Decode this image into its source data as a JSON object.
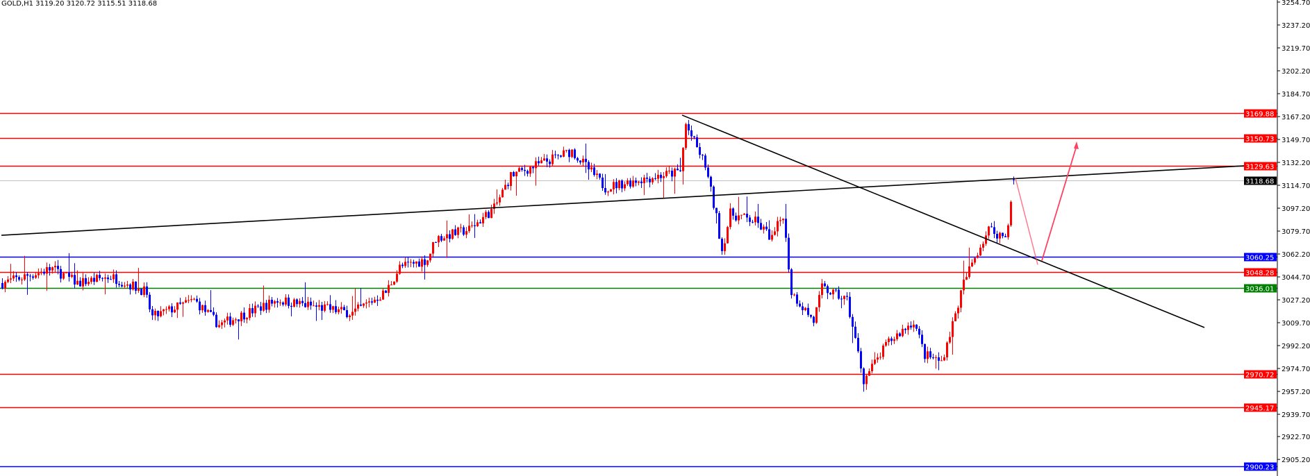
{
  "header": {
    "title": "GOLD,H1  3119.20 3120.72 3115.51 3118.68"
  },
  "chart_data": {
    "type": "candlestick",
    "symbol": "GOLD",
    "timeframe": "H1",
    "last_ohlc": {
      "open": 3119.2,
      "high": 3120.72,
      "low": 3115.51,
      "close": 3118.68
    },
    "ylim": [
      2897.0,
      3256.3
    ],
    "y_ticks": [
      "3254.70",
      "3237.20",
      "3219.70",
      "3202.20",
      "3184.70",
      "3167.20",
      "3149.70",
      "3132.20",
      "3114.70",
      "3097.20",
      "3079.70",
      "3062.20",
      "3044.70",
      "3027.20",
      "3009.70",
      "2992.20",
      "2974.70",
      "2957.20",
      "2939.70",
      "2922.70",
      "2905.20"
    ],
    "bull_color": "#ff0000",
    "bear_color": "#0000ff",
    "approx_close_path": [
      [
        0,
        3040
      ],
      [
        18,
        3051
      ],
      [
        27,
        3040
      ],
      [
        39,
        3045
      ],
      [
        51,
        3034
      ],
      [
        54,
        3014
      ],
      [
        69,
        3027
      ],
      [
        78,
        3008
      ],
      [
        99,
        3027
      ],
      [
        126,
        3017
      ],
      [
        138,
        3033
      ],
      [
        143,
        3052
      ],
      [
        153,
        3058
      ],
      [
        156,
        3074
      ],
      [
        168,
        3081
      ],
      [
        177,
        3097
      ],
      [
        183,
        3122
      ],
      [
        205,
        3141
      ],
      [
        217,
        3113
      ],
      [
        229,
        3119
      ],
      [
        244,
        3125
      ],
      [
        246,
        3161
      ],
      [
        253,
        3130
      ],
      [
        257,
        3090
      ],
      [
        259,
        3065
      ],
      [
        262,
        3093
      ],
      [
        271,
        3087
      ],
      [
        277,
        3074
      ],
      [
        281,
        3093
      ],
      [
        284,
        3033
      ],
      [
        292,
        3011
      ],
      [
        295,
        3036
      ],
      [
        304,
        3027
      ],
      [
        310,
        2966
      ],
      [
        319,
        2995
      ],
      [
        328,
        3011
      ],
      [
        332,
        2985
      ],
      [
        338,
        2980
      ],
      [
        343,
        3016
      ],
      [
        346,
        3040
      ],
      [
        350,
        3060
      ],
      [
        355,
        3081
      ],
      [
        361,
        3075
      ],
      [
        363,
        3100
      ],
      [
        364,
        3118.68
      ]
    ],
    "levels": [
      {
        "label": "3169.88",
        "price": 3169.88,
        "color": "#ff0000"
      },
      {
        "label": "3150.73",
        "price": 3150.73,
        "color": "#ff0000"
      },
      {
        "label": "3129.63",
        "price": 3129.63,
        "color": "#ff0000"
      },
      {
        "label": "3118.68",
        "price": 3118.68,
        "color": "#000000",
        "line_color": "#c0c0c0"
      },
      {
        "label": "3060.25",
        "price": 3060.25,
        "color": "#0000ff"
      },
      {
        "label": "3048.28",
        "price": 3048.28,
        "color": "#ff0000"
      },
      {
        "label": "3036.01",
        "price": 3036.01,
        "color": "#008000"
      },
      {
        "label": "2970.72",
        "price": 2970.72,
        "color": "#ff0000"
      },
      {
        "label": "2945.17",
        "price": 2945.17,
        "color": "#ff0000"
      },
      {
        "label": "2900.23",
        "price": 2900.23,
        "color": "#0000ff"
      }
    ],
    "trendlines": [
      {
        "name": "rising",
        "from": [
          0,
          3076.5
        ],
        "to": [
          451,
          3130.0
        ],
        "color": "#000000"
      },
      {
        "name": "falling",
        "from": [
          245,
          3168.3
        ],
        "to": [
          433,
          3006.0
        ],
        "color": "#000000"
      }
    ],
    "projection_arrow": {
      "points": [
        [
          365,
          3120
        ],
        [
          373,
          3054
        ],
        [
          387,
          3145
        ]
      ],
      "color": "#ff4060"
    }
  }
}
